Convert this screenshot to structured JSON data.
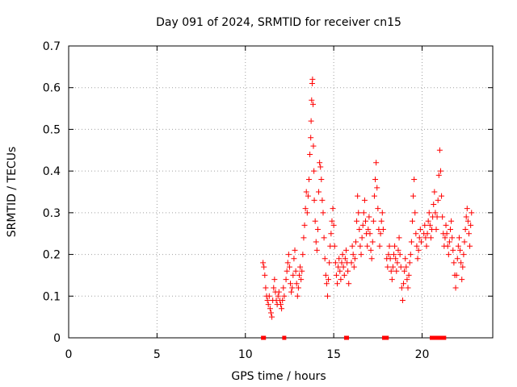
{
  "chart_data": {
    "type": "scatter",
    "title": "Day 091 of 2024, SRMTID for receiver cn15",
    "xlabel": "GPS time / hours",
    "ylabel": "SRMTID / TECUs",
    "xlim": [
      0,
      24
    ],
    "ylim": [
      0,
      0.7
    ],
    "xticks": [
      0,
      5,
      10,
      15,
      20
    ],
    "yticks": [
      0,
      0.1,
      0.2,
      0.3,
      0.4,
      0.5,
      0.6,
      0.7
    ],
    "xtick_labels": [
      "0",
      "5",
      "10",
      "15",
      "20"
    ],
    "ytick_labels": [
      "0",
      "0.1",
      "0.2",
      "0.3",
      "0.4",
      "0.5",
      "0.6",
      "0.7"
    ],
    "grid": true,
    "marker": "+",
    "color": "#ff0000",
    "series": [
      {
        "name": "SRMTID",
        "points": [
          [
            11.0,
            0.18
          ],
          [
            11.05,
            0.17
          ],
          [
            11.1,
            0.15
          ],
          [
            11.15,
            0.12
          ],
          [
            11.2,
            0.1
          ],
          [
            11.25,
            0.09
          ],
          [
            11.3,
            0.08
          ],
          [
            11.35,
            0.1
          ],
          [
            11.4,
            0.07
          ],
          [
            11.45,
            0.06
          ],
          [
            11.5,
            0.05
          ],
          [
            11.55,
            0.09
          ],
          [
            11.6,
            0.12
          ],
          [
            11.65,
            0.14
          ],
          [
            11.7,
            0.11
          ],
          [
            11.75,
            0.09
          ],
          [
            11.8,
            0.08
          ],
          [
            11.85,
            0.1
          ],
          [
            11.9,
            0.11
          ],
          [
            11.95,
            0.09
          ],
          [
            12.0,
            0.08
          ],
          [
            12.05,
            0.07
          ],
          [
            12.1,
            0.09
          ],
          [
            12.15,
            0.12
          ],
          [
            12.2,
            0.1
          ],
          [
            12.3,
            0.14
          ],
          [
            12.35,
            0.16
          ],
          [
            12.4,
            0.18
          ],
          [
            12.45,
            0.2
          ],
          [
            12.5,
            0.17
          ],
          [
            12.55,
            0.13
          ],
          [
            12.6,
            0.11
          ],
          [
            12.65,
            0.12
          ],
          [
            12.7,
            0.15
          ],
          [
            12.75,
            0.19
          ],
          [
            12.8,
            0.21
          ],
          [
            12.85,
            0.16
          ],
          [
            12.9,
            0.13
          ],
          [
            12.95,
            0.1
          ],
          [
            13.0,
            0.12
          ],
          [
            13.05,
            0.15
          ],
          [
            13.1,
            0.17
          ],
          [
            13.15,
            0.14
          ],
          [
            13.2,
            0.16
          ],
          [
            13.25,
            0.2
          ],
          [
            13.3,
            0.24
          ],
          [
            13.35,
            0.27
          ],
          [
            13.4,
            0.31
          ],
          [
            13.45,
            0.35
          ],
          [
            13.5,
            0.3
          ],
          [
            13.55,
            0.34
          ],
          [
            13.6,
            0.38
          ],
          [
            13.65,
            0.44
          ],
          [
            13.7,
            0.48
          ],
          [
            13.72,
            0.52
          ],
          [
            13.75,
            0.57
          ],
          [
            13.78,
            0.61
          ],
          [
            13.8,
            0.62
          ],
          [
            13.83,
            0.56
          ],
          [
            13.85,
            0.46
          ],
          [
            13.88,
            0.4
          ],
          [
            13.9,
            0.33
          ],
          [
            13.95,
            0.28
          ],
          [
            14.0,
            0.23
          ],
          [
            14.05,
            0.21
          ],
          [
            14.1,
            0.26
          ],
          [
            14.15,
            0.35
          ],
          [
            14.2,
            0.42
          ],
          [
            14.25,
            0.41
          ],
          [
            14.3,
            0.38
          ],
          [
            14.35,
            0.33
          ],
          [
            14.4,
            0.3
          ],
          [
            14.45,
            0.24
          ],
          [
            14.5,
            0.19
          ],
          [
            14.55,
            0.15
          ],
          [
            14.6,
            0.13
          ],
          [
            14.65,
            0.1
          ],
          [
            14.7,
            0.14
          ],
          [
            14.75,
            0.18
          ],
          [
            14.8,
            0.22
          ],
          [
            14.85,
            0.25
          ],
          [
            14.9,
            0.28
          ],
          [
            14.95,
            0.31
          ],
          [
            15.0,
            0.27
          ],
          [
            15.05,
            0.22
          ],
          [
            15.1,
            0.18
          ],
          [
            15.15,
            0.15
          ],
          [
            15.2,
            0.13
          ],
          [
            15.25,
            0.17
          ],
          [
            15.3,
            0.19
          ],
          [
            15.35,
            0.16
          ],
          [
            15.4,
            0.14
          ],
          [
            15.45,
            0.18
          ],
          [
            15.5,
            0.2
          ],
          [
            15.55,
            0.17
          ],
          [
            15.6,
            0.15
          ],
          [
            15.65,
            0.19
          ],
          [
            15.7,
            0.21
          ],
          [
            15.75,
            0.18
          ],
          [
            15.8,
            0.16
          ],
          [
            15.85,
            0.13
          ],
          [
            16.0,
            0.18
          ],
          [
            16.05,
            0.22
          ],
          [
            16.1,
            0.2
          ],
          [
            16.15,
            0.17
          ],
          [
            16.2,
            0.19
          ],
          [
            16.25,
            0.23
          ],
          [
            16.3,
            0.28
          ],
          [
            16.35,
            0.34
          ],
          [
            16.4,
            0.3
          ],
          [
            16.45,
            0.26
          ],
          [
            16.5,
            0.22
          ],
          [
            16.55,
            0.2
          ],
          [
            16.6,
            0.24
          ],
          [
            16.65,
            0.27
          ],
          [
            16.7,
            0.3
          ],
          [
            16.75,
            0.33
          ],
          [
            16.8,
            0.28
          ],
          [
            16.85,
            0.25
          ],
          [
            16.9,
            0.22
          ],
          [
            16.95,
            0.26
          ],
          [
            17.0,
            0.29
          ],
          [
            17.05,
            0.25
          ],
          [
            17.1,
            0.21
          ],
          [
            17.15,
            0.19
          ],
          [
            17.2,
            0.23
          ],
          [
            17.25,
            0.28
          ],
          [
            17.3,
            0.34
          ],
          [
            17.35,
            0.38
          ],
          [
            17.4,
            0.42
          ],
          [
            17.45,
            0.36
          ],
          [
            17.5,
            0.31
          ],
          [
            17.55,
            0.26
          ],
          [
            17.6,
            0.22
          ],
          [
            17.65,
            0.25
          ],
          [
            17.7,
            0.28
          ],
          [
            17.75,
            0.3
          ],
          [
            17.8,
            0.26
          ],
          [
            18.0,
            0.19
          ],
          [
            18.05,
            0.17
          ],
          [
            18.1,
            0.2
          ],
          [
            18.15,
            0.22
          ],
          [
            18.2,
            0.19
          ],
          [
            18.25,
            0.16
          ],
          [
            18.3,
            0.14
          ],
          [
            18.35,
            0.17
          ],
          [
            18.4,
            0.2
          ],
          [
            18.45,
            0.22
          ],
          [
            18.5,
            0.19
          ],
          [
            18.55,
            0.16
          ],
          [
            18.6,
            0.18
          ],
          [
            18.65,
            0.21
          ],
          [
            18.7,
            0.24
          ],
          [
            18.75,
            0.2
          ],
          [
            18.8,
            0.17
          ],
          [
            18.85,
            0.12
          ],
          [
            18.9,
            0.09
          ],
          [
            18.95,
            0.13
          ],
          [
            19.0,
            0.16
          ],
          [
            19.05,
            0.19
          ],
          [
            19.1,
            0.17
          ],
          [
            19.15,
            0.14
          ],
          [
            19.2,
            0.12
          ],
          [
            19.25,
            0.15
          ],
          [
            19.3,
            0.18
          ],
          [
            19.35,
            0.2
          ],
          [
            19.4,
            0.23
          ],
          [
            19.45,
            0.28
          ],
          [
            19.5,
            0.34
          ],
          [
            19.55,
            0.38
          ],
          [
            19.6,
            0.3
          ],
          [
            19.65,
            0.25
          ],
          [
            19.7,
            0.22
          ],
          [
            19.75,
            0.19
          ],
          [
            19.8,
            0.21
          ],
          [
            19.85,
            0.24
          ],
          [
            19.9,
            0.26
          ],
          [
            19.95,
            0.23
          ],
          [
            20.1,
            0.25
          ],
          [
            20.15,
            0.27
          ],
          [
            20.2,
            0.24
          ],
          [
            20.25,
            0.22
          ],
          [
            20.3,
            0.25
          ],
          [
            20.35,
            0.28
          ],
          [
            20.4,
            0.3
          ],
          [
            20.45,
            0.27
          ],
          [
            20.5,
            0.24
          ],
          [
            20.55,
            0.26
          ],
          [
            20.6,
            0.29
          ],
          [
            20.65,
            0.32
          ],
          [
            20.7,
            0.35
          ],
          [
            20.75,
            0.3
          ],
          [
            20.8,
            0.26
          ],
          [
            20.85,
            0.29
          ],
          [
            20.9,
            0.33
          ],
          [
            20.95,
            0.39
          ],
          [
            21.0,
            0.45
          ],
          [
            21.05,
            0.4
          ],
          [
            21.1,
            0.34
          ],
          [
            21.15,
            0.29
          ],
          [
            21.2,
            0.25
          ],
          [
            21.25,
            0.22
          ],
          [
            21.3,
            0.24
          ],
          [
            21.35,
            0.27
          ],
          [
            21.4,
            0.25
          ],
          [
            21.45,
            0.22
          ],
          [
            21.5,
            0.2
          ],
          [
            21.55,
            0.23
          ],
          [
            21.6,
            0.26
          ],
          [
            21.65,
            0.28
          ],
          [
            21.7,
            0.24
          ],
          [
            21.75,
            0.21
          ],
          [
            21.8,
            0.18
          ],
          [
            21.85,
            0.15
          ],
          [
            21.9,
            0.12
          ],
          [
            21.95,
            0.15
          ],
          [
            22.0,
            0.19
          ],
          [
            22.05,
            0.22
          ],
          [
            22.1,
            0.24
          ],
          [
            22.15,
            0.21
          ],
          [
            22.2,
            0.18
          ],
          [
            22.25,
            0.14
          ],
          [
            22.3,
            0.17
          ],
          [
            22.35,
            0.2
          ],
          [
            22.4,
            0.23
          ],
          [
            22.45,
            0.26
          ],
          [
            22.5,
            0.29
          ],
          [
            22.55,
            0.31
          ],
          [
            22.6,
            0.28
          ],
          [
            22.65,
            0.25
          ],
          [
            22.7,
            0.22
          ],
          [
            22.75,
            0.27
          ],
          [
            22.8,
            0.3
          ]
        ]
      }
    ],
    "zero_markers": [
      11.0,
      11.05,
      12.2,
      15.7,
      15.75,
      17.85,
      17.9,
      18.0,
      20.55,
      20.6,
      20.8,
      20.9,
      21.05,
      21.25
    ]
  }
}
